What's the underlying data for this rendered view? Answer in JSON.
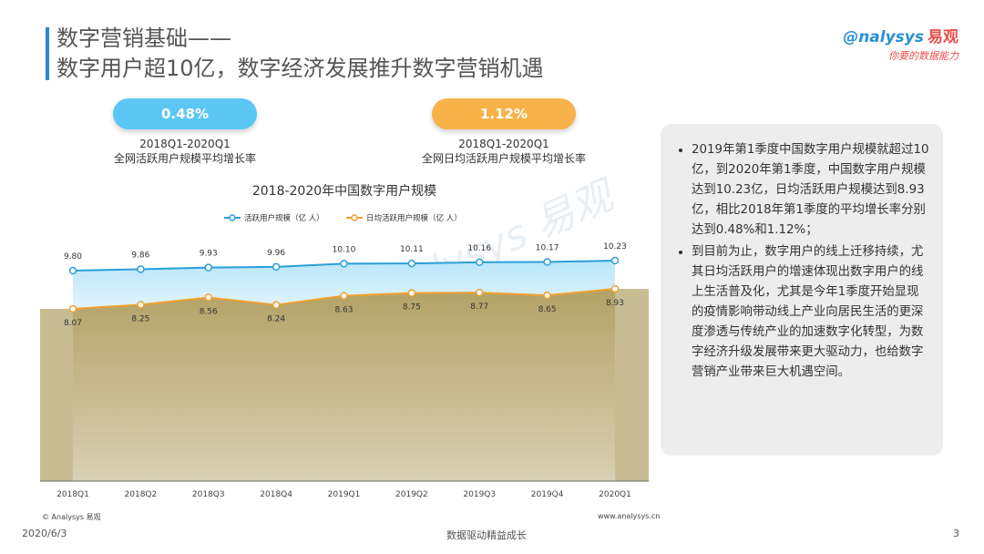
{
  "header": {
    "title_line1": "数字营销基础——",
    "title_line2": "数字用户超10亿，数字经济发展推升数字营销机遇",
    "logo_text": "nalysys",
    "logo_cn": "易观",
    "logo_slogan": "你要的数据能力"
  },
  "stats": [
    {
      "value": "0.48%",
      "period": "2018Q1-2020Q1",
      "label": "全网活跃用户规模平均增长率",
      "color": "#5cc6f4"
    },
    {
      "value": "1.12%",
      "period": "2018Q1-2020Q1",
      "label": "全网日均活跃用户规模平均增长率",
      "color": "#f7b34a"
    }
  ],
  "chart_data": {
    "type": "area",
    "title": "2018-2020年中国数字用户规模",
    "categories": [
      "2018Q1",
      "2018Q2",
      "2018Q3",
      "2018Q4",
      "2019Q1",
      "2019Q2",
      "2019Q3",
      "2019Q4",
      "2020Q1"
    ],
    "series": [
      {
        "name": "活跃用户规模（亿 人）",
        "values": [
          9.8,
          9.86,
          9.93,
          9.96,
          10.1,
          10.11,
          10.16,
          10.17,
          10.23
        ],
        "labels": [
          "9.80",
          "9.86",
          "9.93",
          "9.96",
          "10.10",
          "10.11",
          "10.16",
          "10.17",
          "10.23"
        ],
        "color": "#2a9fd6"
      },
      {
        "name": "日均活跃用户规模（亿 人）",
        "values": [
          8.07,
          8.25,
          8.56,
          8.24,
          8.63,
          8.75,
          8.77,
          8.65,
          8.93
        ],
        "labels": [
          "8.07",
          "8.25",
          "8.56",
          "8.24",
          "8.63",
          "8.75",
          "8.77",
          "8.65",
          "8.93"
        ],
        "color": "#f0a030"
      }
    ],
    "legend": "top",
    "grid": false,
    "source_left": "© Analysys 易观",
    "source_right": "www.analysys.cn"
  },
  "panel": {
    "bullets": [
      "2019年第1季度中国数字用户规模就超过10亿，到2020年第1季度，中国数字用户规模达到10.23亿，日均活跃用户规模达到8.93亿，相比2018年第1季度的平均增长率分别达到0.48%和1.12%；",
      "到目前为止，数字用户的线上迁移持续，尤其日均活跃用户的增速体现出数字用户的线上生活普及化，尤其是今年1季度开始显现的疫情影响带动线上产业向居民生活的更深度渗透与传统产业的加速数字化转型，为数字经济升级发展带来更大驱动力，也给数字营销产业带来巨大机遇空间。"
    ]
  },
  "footer": {
    "date": "2020/6/3",
    "slogan": "数据驱动精益成长",
    "page": "3"
  }
}
